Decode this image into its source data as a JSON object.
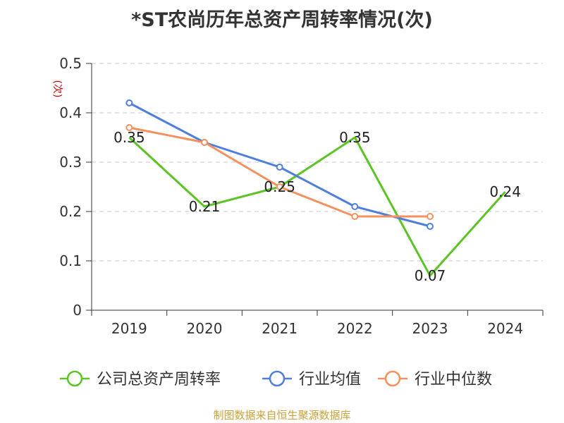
{
  "title": "*ST农尚历年总资产周转率情况(次)",
  "source": "制图数据来自恒生聚源数据库",
  "chart_data": {
    "type": "line",
    "categories": [
      "2019",
      "2020",
      "2021",
      "2022",
      "2023",
      "2024"
    ],
    "ylabel": "(次)",
    "ylim": [
      0,
      0.5
    ],
    "yticks": [
      "0",
      "0.1",
      "0.2",
      "0.3",
      "0.4",
      "0.5"
    ],
    "grid": true,
    "legend_position": "bottom",
    "series": [
      {
        "name": "公司总资产周转率",
        "color": "#5cc424",
        "values": [
          0.35,
          0.21,
          0.25,
          0.35,
          0.07,
          0.24
        ],
        "labels": [
          "0.35",
          "0.21",
          "0.25",
          "0.35",
          "0.07",
          "0.24"
        ]
      },
      {
        "name": "行业均值",
        "color": "#4f7fdc",
        "values": [
          0.42,
          0.34,
          0.29,
          0.21,
          0.17,
          null
        ]
      },
      {
        "name": "行业中位数",
        "color": "#f5915e",
        "values": [
          0.37,
          0.34,
          0.25,
          0.19,
          0.19,
          null
        ]
      }
    ]
  }
}
